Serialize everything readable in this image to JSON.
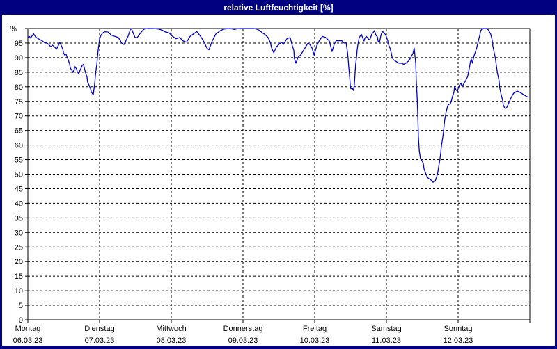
{
  "window": {
    "title": "relative Luftfeuchtigkeit [%]"
  },
  "colors": {
    "frame": "#000080",
    "titlebar": "#000080",
    "title_text": "#ffffff",
    "background": "#ffffff",
    "plot_border": "#000000",
    "gridline": "#000000",
    "line": "#0000cc",
    "label_text": "#000000"
  },
  "chart_data": {
    "type": "line",
    "title": "relative Luftfeuchtigkeit [%]",
    "unit_label": "%",
    "ylabel": "relative Luftfeuchtigkeit",
    "ylim": [
      0,
      100
    ],
    "y_tick_step": 5,
    "y_tick_labels": [
      "0",
      "5",
      "10",
      "15",
      "20",
      "25",
      "30",
      "35",
      "40",
      "45",
      "50",
      "55",
      "60",
      "65",
      "70",
      "75",
      "80",
      "85",
      "90",
      "95"
    ],
    "xlim_hours": [
      0,
      168
    ],
    "x_day_step_hours": 24,
    "grid": "dashed",
    "legend_position": "none",
    "x_days": [
      {
        "name": "Montag",
        "date": "06.03.23"
      },
      {
        "name": "Dienstag",
        "date": "07.03.23"
      },
      {
        "name": "Mittwoch",
        "date": "08.03.23"
      },
      {
        "name": "Donnerstag",
        "date": "09.03.23"
      },
      {
        "name": "Freitag",
        "date": "10.03.23"
      },
      {
        "name": "Samstag",
        "date": "11.03.23"
      },
      {
        "name": "Sonntag",
        "date": "12.03.23"
      }
    ],
    "series": [
      {
        "name": "relative Luftfeuchtigkeit",
        "unit": "%",
        "points": [
          [
            0,
            96.9
          ],
          [
            0.5,
            97.3
          ],
          [
            0.9,
            96.7
          ],
          [
            1.9,
            98.2
          ],
          [
            2.6,
            97.1
          ],
          [
            3.5,
            96.5
          ],
          [
            4.2,
            96.1
          ],
          [
            4.9,
            95.7
          ],
          [
            5.6,
            95.1
          ],
          [
            6.1,
            95.3
          ],
          [
            7,
            94.5
          ],
          [
            7.7,
            93.7
          ],
          [
            8.2,
            94.3
          ],
          [
            8.9,
            93.7
          ],
          [
            9.6,
            92.9
          ],
          [
            10,
            93.7
          ],
          [
            10.7,
            95.3
          ],
          [
            11.2,
            94.1
          ],
          [
            11.7,
            92.9
          ],
          [
            11.9,
            91.7
          ],
          [
            12.3,
            90.9
          ],
          [
            12.8,
            91.3
          ],
          [
            13,
            90.5
          ],
          [
            13.5,
            89.3
          ],
          [
            14,
            87.7
          ],
          [
            14.2,
            86.5
          ],
          [
            14.7,
            85.7
          ],
          [
            15.1,
            84.9
          ],
          [
            15.4,
            85.7
          ],
          [
            15.8,
            86.9
          ],
          [
            16.3,
            86.1
          ],
          [
            16.5,
            85.3
          ],
          [
            17,
            84.5
          ],
          [
            17.5,
            85.7
          ],
          [
            18.2,
            87.3
          ],
          [
            18.6,
            87.7
          ],
          [
            18.9,
            86.5
          ],
          [
            19.3,
            84.9
          ],
          [
            19.8,
            83.3
          ],
          [
            20,
            81.7
          ],
          [
            20.5,
            80.5
          ],
          [
            21,
            79.3
          ],
          [
            21.2,
            78.3
          ],
          [
            21.7,
            77.5
          ],
          [
            21.9,
            77.3
          ],
          [
            22.1,
            78.9
          ],
          [
            22.4,
            81.3
          ],
          [
            22.6,
            83.7
          ],
          [
            22.8,
            85.7
          ],
          [
            23.1,
            87.7
          ],
          [
            23.3,
            90.1
          ],
          [
            23.5,
            92.5
          ],
          [
            23.8,
            94.5
          ],
          [
            24,
            96.5
          ],
          [
            24.5,
            97.7
          ],
          [
            24.9,
            98.3
          ],
          [
            25.6,
            98.9
          ],
          [
            26.8,
            98.8
          ],
          [
            28,
            97.7
          ],
          [
            29.1,
            97.3
          ],
          [
            30.3,
            96.9
          ],
          [
            31.5,
            94.9
          ],
          [
            32.2,
            94.5
          ],
          [
            32.6,
            95.3
          ],
          [
            33.6,
            97.5
          ],
          [
            34.3,
            99.7
          ],
          [
            34.7,
            99.9
          ],
          [
            35.4,
            98.1
          ],
          [
            35.9,
            96.9
          ],
          [
            36.6,
            96.9
          ],
          [
            37.7,
            98.5
          ],
          [
            38.9,
            99.8
          ],
          [
            40.1,
            100
          ],
          [
            41.9,
            100
          ],
          [
            43.8,
            99.8
          ],
          [
            45,
            99.4
          ],
          [
            46.1,
            98.8
          ],
          [
            47.3,
            98.5
          ],
          [
            48.2,
            97.5
          ],
          [
            48.9,
            97
          ],
          [
            49.6,
            96.5
          ],
          [
            50.8,
            96.9
          ],
          [
            52,
            95.7
          ],
          [
            53.1,
            95.3
          ],
          [
            54.3,
            97.3
          ],
          [
            55.9,
            98.5
          ],
          [
            56.6,
            98.9
          ],
          [
            57.8,
            97.3
          ],
          [
            59,
            95.3
          ],
          [
            59.9,
            93.3
          ],
          [
            60.6,
            92.7
          ],
          [
            61.7,
            95.7
          ],
          [
            62.9,
            98.1
          ],
          [
            64.5,
            99.3
          ],
          [
            65.7,
            99.8
          ],
          [
            67.6,
            100
          ],
          [
            69.2,
            99.7
          ],
          [
            70.1,
            99.9
          ],
          [
            71.1,
            100
          ],
          [
            73.4,
            100
          ],
          [
            75.7,
            100
          ],
          [
            76.9,
            99.7
          ],
          [
            77.6,
            99.3
          ],
          [
            78.5,
            98.5
          ],
          [
            79.2,
            98.1
          ],
          [
            80.4,
            96.9
          ],
          [
            81.1,
            95.3
          ],
          [
            81.6,
            93.3
          ],
          [
            82.3,
            91.7
          ],
          [
            83.2,
            93.7
          ],
          [
            84.4,
            94.9
          ],
          [
            85,
            95.3
          ],
          [
            85.5,
            94.5
          ],
          [
            86.7,
            96.5
          ],
          [
            87.8,
            96.9
          ],
          [
            88.5,
            94.1
          ],
          [
            89,
            92.5
          ],
          [
            89.2,
            89.7
          ],
          [
            89.7,
            88.1
          ],
          [
            90.4,
            90.1
          ],
          [
            91.3,
            90.9
          ],
          [
            92.5,
            92.9
          ],
          [
            93.7,
            94.9
          ],
          [
            94.4,
            94.5
          ],
          [
            95.1,
            93.3
          ],
          [
            95.8,
            90.9
          ],
          [
            96.7,
            94.1
          ],
          [
            97.6,
            96
          ],
          [
            98.6,
            97.3
          ],
          [
            99.7,
            96.9
          ],
          [
            100.9,
            95.7
          ],
          [
            101.8,
            92.1
          ],
          [
            102.5,
            94.5
          ],
          [
            103.2,
            95.8
          ],
          [
            104.2,
            95.8
          ],
          [
            105.1,
            95.8
          ],
          [
            105.8,
            95
          ],
          [
            106.5,
            95.1
          ],
          [
            107,
            91.7
          ],
          [
            107.2,
            89.3
          ],
          [
            107.4,
            86.9
          ],
          [
            107.6,
            84.5
          ],
          [
            107.9,
            80.5
          ],
          [
            108.1,
            79.3
          ],
          [
            108.6,
            79.5
          ],
          [
            109,
            78.7
          ],
          [
            109.3,
            81.3
          ],
          [
            109.5,
            84.5
          ],
          [
            109.7,
            87.7
          ],
          [
            110,
            90.1
          ],
          [
            110.2,
            92.5
          ],
          [
            110.4,
            94.1
          ],
          [
            110.9,
            96.9
          ],
          [
            111.4,
            97.7
          ],
          [
            111.6,
            98
          ],
          [
            112.3,
            96.1
          ],
          [
            112.5,
            95.7
          ],
          [
            112.8,
            96.7
          ],
          [
            113.3,
            97.3
          ],
          [
            114.2,
            96.1
          ],
          [
            114.6,
            96.5
          ],
          [
            115.1,
            98.1
          ],
          [
            115.8,
            98.9
          ],
          [
            116,
            99.3
          ],
          [
            116.5,
            97.7
          ],
          [
            117,
            97.1
          ],
          [
            117.2,
            95.7
          ],
          [
            117.7,
            95.3
          ],
          [
            118.1,
            97.3
          ],
          [
            118.4,
            98.5
          ],
          [
            118.8,
            98.9
          ],
          [
            119.3,
            98.5
          ],
          [
            119.8,
            97.7
          ],
          [
            120.5,
            95.7
          ],
          [
            120.7,
            94.5
          ],
          [
            121.2,
            93.3
          ],
          [
            121.6,
            91.7
          ],
          [
            121.9,
            90.1
          ],
          [
            122.3,
            89.3
          ],
          [
            122.8,
            89
          ],
          [
            123.5,
            88.5
          ],
          [
            124.2,
            88.1
          ],
          [
            125.1,
            88.1
          ],
          [
            125.8,
            87.7
          ],
          [
            126.5,
            88.1
          ],
          [
            127.5,
            88.9
          ],
          [
            128.2,
            90.1
          ],
          [
            128.9,
            91.5
          ],
          [
            129.3,
            93.3
          ],
          [
            129.8,
            88
          ],
          [
            130,
            82
          ],
          [
            130.3,
            76
          ],
          [
            130.5,
            70
          ],
          [
            130.7,
            63
          ],
          [
            131,
            58
          ],
          [
            131.4,
            55.4
          ],
          [
            131.9,
            54.6
          ],
          [
            132.3,
            53.8
          ],
          [
            132.6,
            51.8
          ],
          [
            133.3,
            49.8
          ],
          [
            134,
            48.6
          ],
          [
            134.7,
            48.2
          ],
          [
            135.6,
            47.2
          ],
          [
            136.3,
            47.6
          ],
          [
            136.8,
            49
          ],
          [
            137.2,
            50.6
          ],
          [
            137.5,
            52.6
          ],
          [
            137.9,
            55
          ],
          [
            138.2,
            57.4
          ],
          [
            138.4,
            59.8
          ],
          [
            138.8,
            62.2
          ],
          [
            139.1,
            64.6
          ],
          [
            139.3,
            66.6
          ],
          [
            139.5,
            68.6
          ],
          [
            139.8,
            70.2
          ],
          [
            140,
            71.4
          ],
          [
            140.3,
            72.6
          ],
          [
            140.5,
            73.4
          ],
          [
            140.7,
            73.8
          ],
          [
            141.4,
            74.2
          ],
          [
            141.7,
            75
          ],
          [
            142.1,
            76.6
          ],
          [
            142.6,
            78.1
          ],
          [
            142.8,
            80.1
          ],
          [
            143.3,
            78.9
          ],
          [
            143.8,
            78.5
          ],
          [
            144,
            79.3
          ],
          [
            144.4,
            80.5
          ],
          [
            145,
            81.3
          ],
          [
            145.2,
            80.3
          ],
          [
            145.6,
            80.5
          ],
          [
            146.1,
            81.5
          ],
          [
            146.3,
            81.7
          ],
          [
            146.8,
            82.7
          ],
          [
            147.2,
            83.5
          ],
          [
            147.7,
            86.1
          ],
          [
            148.1,
            88.5
          ],
          [
            148.4,
            89.5
          ],
          [
            148.8,
            88.1
          ],
          [
            149.3,
            90.5
          ],
          [
            149.8,
            92
          ],
          [
            150.2,
            93.3
          ],
          [
            150.7,
            95.5
          ],
          [
            151.2,
            97.5
          ],
          [
            151.6,
            99.3
          ],
          [
            152.1,
            100
          ],
          [
            153.5,
            100
          ],
          [
            154,
            99.7
          ],
          [
            154.5,
            98.8
          ],
          [
            154.9,
            98.1
          ],
          [
            155.4,
            96.1
          ],
          [
            155.6,
            94.1
          ],
          [
            156.1,
            91.7
          ],
          [
            156.5,
            89.7
          ],
          [
            156.8,
            87.3
          ],
          [
            157.2,
            84.5
          ],
          [
            157.7,
            82.1
          ],
          [
            157.9,
            79.7
          ],
          [
            158.4,
            77.3
          ],
          [
            158.9,
            75.4
          ],
          [
            159.1,
            73.8
          ],
          [
            159.6,
            72.7
          ],
          [
            160,
            72.6
          ],
          [
            160.3,
            73
          ],
          [
            161.2,
            75
          ],
          [
            161.9,
            76.6
          ],
          [
            162.6,
            77.8
          ],
          [
            163.8,
            78.5
          ],
          [
            164.7,
            78.1
          ],
          [
            165.9,
            77.3
          ],
          [
            167,
            76.6
          ],
          [
            167.5,
            76.5
          ]
        ]
      }
    ]
  }
}
